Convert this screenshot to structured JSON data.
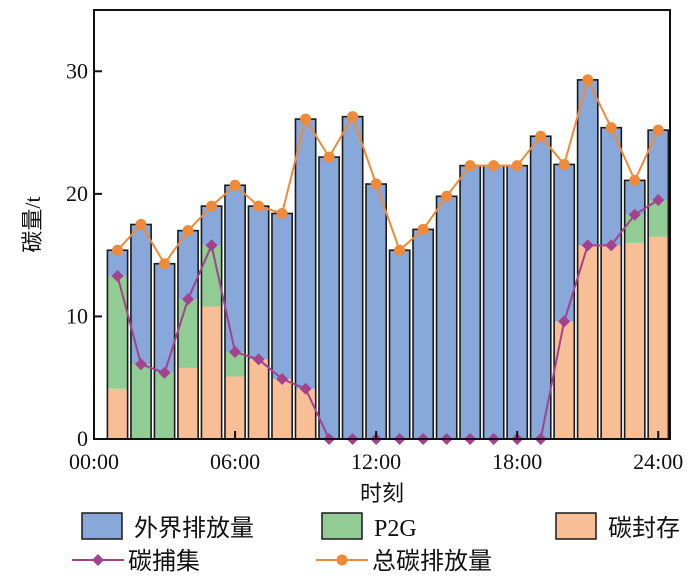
{
  "chart_data": {
    "type": "bar",
    "xlabel": "时刻",
    "ylabel": "碳量/t",
    "ylim": [
      0,
      35
    ],
    "x_ticks": [
      "00:00",
      "06:00",
      "12:00",
      "18:00",
      "24:00"
    ],
    "y_ticks": [
      "0",
      "10",
      "20",
      "30"
    ],
    "x_tick_values": [
      0,
      6,
      12,
      18,
      24
    ],
    "y_tick_values": [
      0,
      10,
      20,
      30
    ],
    "legend_position": "bottom",
    "x": [
      1,
      2,
      3,
      4,
      5,
      6,
      7,
      8,
      9,
      10,
      11,
      12,
      13,
      14,
      15,
      16,
      17,
      18,
      19,
      20,
      21,
      22,
      23,
      24
    ],
    "stack_series": [
      {
        "name": "碳封存",
        "color": "#f8be96",
        "values": [
          4.1,
          0,
          0,
          5.8,
          10.8,
          5.1,
          6.5,
          4.9,
          4.1,
          0,
          0,
          0,
          0,
          0,
          0,
          0,
          0,
          0,
          0,
          9.6,
          15.8,
          15.8,
          16.0,
          16.5
        ]
      },
      {
        "name": "P2G",
        "color": "#90cc94",
        "values": [
          9.2,
          6.1,
          5.4,
          5.6,
          5.0,
          2.0,
          0,
          0,
          0,
          0,
          0,
          0,
          0,
          0,
          0,
          0,
          0,
          0,
          0,
          0,
          0,
          0,
          2.3,
          3.0
        ]
      },
      {
        "name": "外界排放量",
        "color": "#88a8da",
        "values": [
          2.1,
          11.4,
          8.9,
          5.6,
          3.2,
          13.6,
          12.5,
          13.5,
          22.0,
          23.0,
          26.3,
          20.8,
          15.4,
          17.1,
          19.8,
          22.3,
          22.3,
          22.3,
          24.7,
          12.8,
          13.5,
          9.6,
          2.8,
          5.7
        ]
      }
    ],
    "line_series": [
      {
        "name": "碳捕集",
        "color": "#a3428e",
        "marker": "diamond",
        "values": [
          13.3,
          6.1,
          5.4,
          11.4,
          15.8,
          7.1,
          6.5,
          4.9,
          4.1,
          0,
          0,
          0,
          0,
          0,
          0,
          0,
          0,
          0,
          0,
          9.6,
          15.8,
          15.8,
          18.3,
          19.5
        ]
      },
      {
        "name": "总碳排放量",
        "color": "#ef8a3a",
        "marker": "circle",
        "values": [
          15.4,
          17.5,
          14.3,
          17.0,
          19.0,
          20.7,
          19.0,
          18.4,
          26.1,
          23.0,
          26.3,
          20.8,
          15.4,
          17.1,
          19.8,
          22.3,
          22.3,
          22.3,
          24.7,
          22.4,
          29.3,
          25.4,
          21.1,
          25.2
        ]
      }
    ],
    "legend_entries": [
      {
        "label": "外界排放量",
        "type": "box",
        "color": "#88a8da"
      },
      {
        "label": "P2G",
        "type": "box",
        "color": "#90cc94"
      },
      {
        "label": "碳封存",
        "type": "box",
        "color": "#f8be96"
      },
      {
        "label": "碳捕集",
        "type": "line-diamond",
        "color": "#a3428e"
      },
      {
        "label": "总碳排放量",
        "type": "line-circle",
        "color": "#ef8a3a"
      }
    ]
  }
}
